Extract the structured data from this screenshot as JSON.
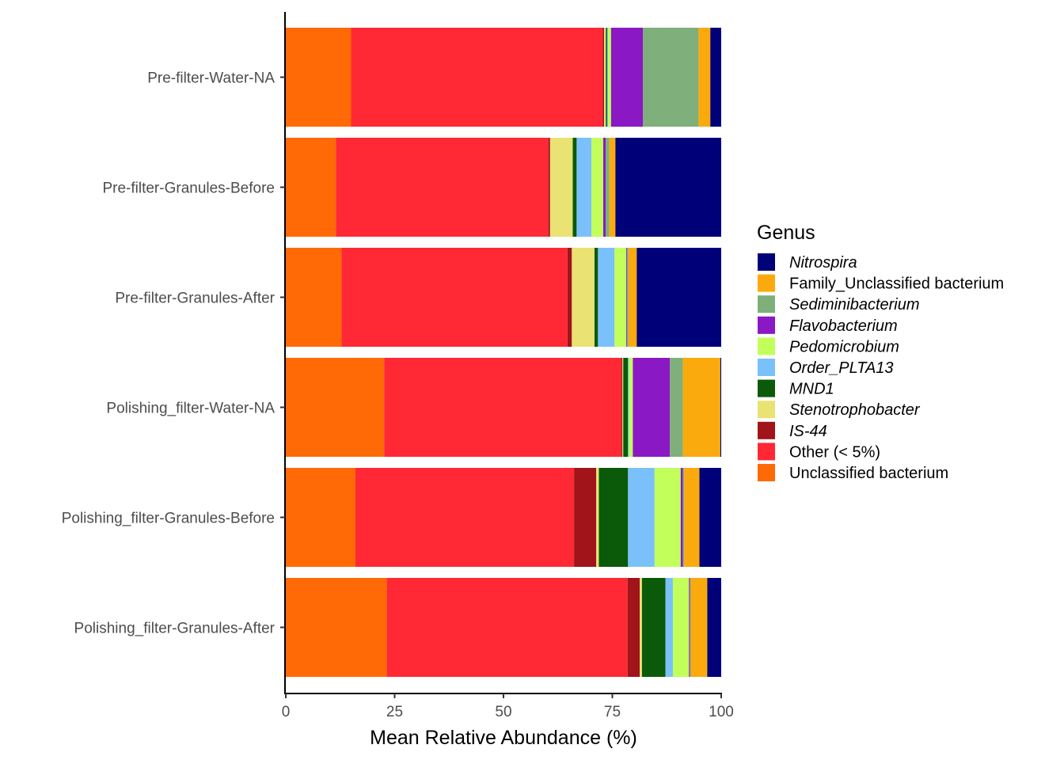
{
  "chart_data": {
    "type": "bar",
    "orientation": "horizontal",
    "stacked": true,
    "categories": [
      "Pre-filter-Water-NA",
      "Pre-filter-Granules-Before",
      "Pre-filter-Granules-After",
      "Polishing_filter-Water-NA",
      "Polishing_filter-Granules-Before",
      "Polishing_filter-Granules-After"
    ],
    "xlabel": "Mean Relative Abundance (%)",
    "ylabel": "",
    "xlim": [
      0,
      100
    ],
    "xticks": [
      0,
      25,
      50,
      75,
      100
    ],
    "grid": false,
    "legend": {
      "title": "Genus",
      "placement": "right"
    },
    "series": [
      {
        "name": "Unclassified bacterium",
        "italic": false,
        "color": "#FF6A07",
        "values": [
          15.0,
          11.5,
          12.8,
          22.6,
          16.0,
          23.2
        ]
      },
      {
        "name": "Other (< 5%)",
        "italic": false,
        "color": "#FF2834",
        "values": [
          57.8,
          48.8,
          51.9,
          54.5,
          50.2,
          55.3
        ]
      },
      {
        "name": "IS-44",
        "italic": true,
        "color": "#A0141A",
        "values": [
          0.3,
          0.4,
          1.0,
          0.2,
          5.1,
          2.8
        ]
      },
      {
        "name": "Stenotrophobacter",
        "italic": true,
        "color": "#EAE272",
        "values": [
          0.4,
          5.2,
          5.2,
          0.2,
          0.6,
          0.5
        ]
      },
      {
        "name": "MND1",
        "italic": true,
        "color": "#0A5A0A",
        "values": [
          0.3,
          0.9,
          0.8,
          1.1,
          6.7,
          5.4
        ]
      },
      {
        "name": "Order_PLTA13",
        "italic": true,
        "color": "#7AC0FA",
        "values": [
          0.2,
          3.4,
          3.8,
          0.2,
          6.1,
          1.7
        ]
      },
      {
        "name": "Pedomicrobium",
        "italic": true,
        "color": "#C2FF5A",
        "values": [
          0.7,
          2.7,
          2.7,
          0.9,
          6.0,
          3.7
        ]
      },
      {
        "name": "Flavobacterium",
        "italic": true,
        "color": "#8A18C4",
        "values": [
          7.3,
          0.6,
          0.2,
          8.5,
          0.5,
          0.2
        ]
      },
      {
        "name": "Sediminibacterium",
        "italic": true,
        "color": "#7FAF7A",
        "values": [
          12.8,
          0.8,
          0.3,
          3.0,
          0.3,
          0.2
        ]
      },
      {
        "name": "Family_Unclassified bacterium",
        "italic": false,
        "color": "#FBAA0D",
        "values": [
          2.7,
          1.4,
          1.9,
          8.6,
          3.5,
          3.8
        ]
      },
      {
        "name": "Nitrospira",
        "italic": true,
        "color": "#000078",
        "values": [
          2.5,
          24.3,
          19.4,
          0.2,
          5.0,
          3.2
        ]
      }
    ],
    "legend_order": [
      "Nitrospira",
      "Family_Unclassified bacterium",
      "Sediminibacterium",
      "Flavobacterium",
      "Pedomicrobium",
      "Order_PLTA13",
      "MND1",
      "Stenotrophobacter",
      "IS-44",
      "Other (< 5%)",
      "Unclassified bacterium"
    ]
  }
}
